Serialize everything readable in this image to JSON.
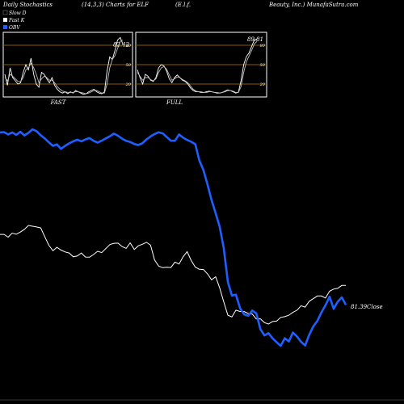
{
  "header": {
    "left": "Daily Stochastics",
    "params": "(14,3,3) Charts for ELF",
    "company": "(E.l.f.",
    "site": "Beauty, Inc.) MunafaSutra.com"
  },
  "legend": [
    {
      "label": "Slow  D",
      "color": "#000000"
    },
    {
      "label": "Fast K",
      "color": "#ffffff"
    },
    {
      "label": "OBV",
      "color": "#1f5fff"
    }
  ],
  "colors": {
    "background": "#000000",
    "obv": "#1f5fff",
    "price": "#ffffff",
    "grid": "#8b5a00",
    "panel_border": "#ffffff"
  },
  "chart_data": [
    {
      "type": "line",
      "panel": "FAST",
      "label": "FAST",
      "value_label": "82.42",
      "yticks": [
        "80",
        "50",
        "20"
      ],
      "grid_levels": [
        80,
        50,
        20
      ],
      "ylim": [
        0,
        100
      ],
      "series": [
        {
          "name": "Fast K",
          "values": [
            35,
            18,
            45,
            30,
            25,
            20,
            22,
            38,
            50,
            42,
            60,
            35,
            20,
            15,
            38,
            35,
            28,
            22,
            30,
            18,
            12,
            8,
            6,
            8,
            5,
            8,
            6,
            10,
            8,
            6,
            4,
            5,
            8,
            10,
            12,
            8,
            6,
            5,
            8,
            40,
            62,
            58,
            72,
            88,
            92,
            82
          ]
        },
        {
          "name": "Slow  D",
          "values": [
            30,
            25,
            35,
            32,
            28,
            24,
            24,
            30,
            42,
            45,
            52,
            45,
            35,
            22,
            28,
            32,
            30,
            26,
            26,
            22,
            16,
            12,
            9,
            8,
            7,
            7,
            7,
            8,
            8,
            7,
            6,
            5,
            6,
            8,
            10,
            10,
            8,
            6,
            6,
            20,
            45,
            58,
            64,
            75,
            86,
            88
          ]
        }
      ]
    },
    {
      "type": "line",
      "panel": "FULL",
      "label": "FULL",
      "value_label": "89.81",
      "yticks": [
        "80",
        "50",
        "20"
      ],
      "grid_levels": [
        80,
        50,
        20
      ],
      "ylim": [
        0,
        100
      ],
      "series": [
        {
          "name": "Fast K",
          "values": [
            42,
            30,
            20,
            35,
            32,
            26,
            24,
            30,
            45,
            50,
            48,
            40,
            28,
            22,
            30,
            34,
            30,
            26,
            24,
            20,
            14,
            10,
            8,
            8,
            7,
            7,
            8,
            9,
            8,
            7,
            6,
            6,
            7,
            9,
            11,
            10,
            8,
            6,
            7,
            25,
            50,
            62,
            68,
            78,
            88,
            90
          ]
        },
        {
          "name": "Slow  D",
          "values": [
            38,
            32,
            26,
            30,
            30,
            27,
            25,
            28,
            38,
            45,
            47,
            43,
            34,
            26,
            28,
            31,
            30,
            27,
            25,
            22,
            17,
            12,
            9,
            8,
            8,
            7,
            7,
            8,
            8,
            7,
            7,
            6,
            7,
            8,
            10,
            10,
            9,
            7,
            7,
            16,
            38,
            54,
            63,
            72,
            82,
            86
          ]
        }
      ]
    },
    {
      "type": "line",
      "panel": "main",
      "close_label": "81.39Close",
      "series": [
        {
          "name": "OBV",
          "values": [
            20.0,
            20.6,
            16.6,
            20.0,
            15.9,
            21.1,
            14.9,
            19.3,
            25.5,
            22.2,
            15.2,
            9.6,
            3.0,
            -3.2,
            -0.6,
            -8.3,
            -3.2,
            1.2,
            4.7,
            7.3,
            4.7,
            8.0,
            10.2,
            5.5,
            2.4,
            5.8,
            9.7,
            13.5,
            18.0,
            14.3,
            9.3,
            5.5,
            3.5,
            0.0,
            -1.8,
            1.3,
            8.0,
            13.0,
            17.2,
            20.3,
            18.4,
            12.0,
            5.8,
            5.6,
            16.5,
            11.0,
            7.0,
            3.8,
            -0.4,
            -28.6,
            -45.0,
            -70.0,
            -96.8,
            -119.8,
            -143.0,
            -180.0,
            -238.4,
            -262.0,
            -260.5,
            -284.0,
            -294.5,
            -297.2,
            -288.0,
            -292.8,
            -320.4,
            -331.0,
            -327.0,
            -336.2,
            -342.8,
            -349.0,
            -335.8,
            -341.5,
            -326.0,
            -333.0,
            -342.0,
            -348.5,
            -330.0,
            -315.4,
            -305.8,
            -291.2,
            -278.8,
            -264.0,
            -285.0,
            -272.8,
            -265.2,
            -278.0
          ]
        },
        {
          "name": "Price",
          "values": [
            128.5,
            128.5,
            125.2,
            130.0,
            128.7,
            131.3,
            134.6,
            139.2,
            138.2,
            137.4,
            136.2,
            125.8,
            115.6,
            109.0,
            113.1,
            109.8,
            107.6,
            106.3,
            101.8,
            102.7,
            106.3,
            101.5,
            101.3,
            104.5,
            108.3,
            106.8,
            111.5,
            116.3,
            117.9,
            118.1,
            114.0,
            111.8,
            118.4,
            110.5,
            114.9,
            116.7,
            119.0,
            115.7,
            97.9,
            90.7,
            88.7,
            89.2,
            88.9,
            95.4,
            93.2,
            101.8,
            107.8,
            97.2,
            89.4,
            86.8,
            86.5,
            81.4,
            74.3,
            77.8,
            64.6,
            48.0,
            32.0,
            30.0,
            38.0,
            36.5,
            36.5,
            34.0,
            33.4,
            27.5,
            27.7,
            23.1,
            21.5,
            24.5,
            25.0,
            29.4,
            30.3,
            32.0,
            35.4,
            38.0,
            43.3,
            41.7,
            48.6,
            51.8,
            55.0,
            55.0,
            52.5,
            60.7,
            63.2,
            64.0,
            67.5,
            67.5
          ]
        }
      ]
    }
  ]
}
